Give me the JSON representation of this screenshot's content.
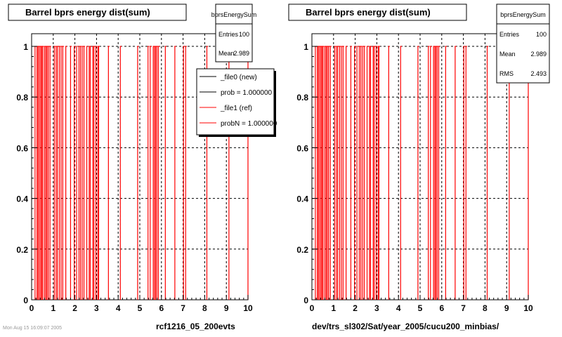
{
  "footer_timestamp": "Mon Aug 15 16:09:07 2005",
  "colors": {
    "new": "#000000",
    "ref": "#ff0000",
    "grid": "#000000",
    "frame": "#000000"
  },
  "chart_data": [
    {
      "type": "bar",
      "title": "Barrel bprs energy dist(sum)",
      "xlabel": "rcf1216_05_200evts",
      "ylabel": "",
      "xlim": [
        0,
        10
      ],
      "ylim": [
        0,
        1.05
      ],
      "xticks": [
        "0",
        "1",
        "2",
        "3",
        "4",
        "5",
        "6",
        "7",
        "8",
        "9",
        "10"
      ],
      "yticks": [
        "0",
        "0.2",
        "0.4",
        "0.6",
        "0.8",
        "1"
      ],
      "grid": true,
      "stats": {
        "name": "bprsEnergySum",
        "rows": [
          {
            "label": "Entries",
            "value": "100"
          },
          {
            "label": "Mean",
            "value": "2.989"
          }
        ]
      },
      "legend": {
        "position": "top-right",
        "entries": [
          {
            "label": "_file0 (new)",
            "color": "#000000"
          },
          {
            "label": "prob = 1.000000",
            "color": "#000000"
          },
          {
            "label": "_file1 (ref)",
            "color": "#ff0000"
          },
          {
            "label": "probN = 1.000000",
            "color": "#ff0000"
          }
        ]
      },
      "series": [
        {
          "x": [
            0.16,
            0.25,
            0.3,
            0.36,
            0.42,
            0.47,
            0.52,
            0.6,
            0.66,
            0.71,
            0.77,
            0.85,
            1.05,
            1.13,
            1.19,
            1.28,
            1.36,
            1.44,
            1.58,
            1.8,
            1.97,
            2.08,
            2.19,
            2.26,
            2.34,
            2.42,
            2.55,
            2.66,
            2.71,
            2.83,
            2.88,
            2.97,
            3.06,
            3.1,
            3.55,
            4.1,
            4.9,
            5.38,
            5.48,
            5.62,
            5.68,
            5.73,
            5.79,
            5.86,
            6.18,
            6.62,
            7.02,
            7.12,
            8.1,
            9.12,
            10.0
          ],
          "values": [
            1,
            1,
            1,
            1,
            1,
            1,
            1,
            1,
            1,
            1,
            1,
            1,
            1,
            1,
            1,
            1,
            1,
            1,
            1,
            1,
            1,
            1,
            1,
            1,
            1,
            1,
            1,
            1,
            1,
            1,
            1,
            1,
            1,
            1,
            1,
            1,
            1,
            1,
            1,
            1,
            1,
            1,
            1,
            1,
            1,
            1,
            1,
            1,
            1,
            1,
            1
          ]
        }
      ]
    },
    {
      "type": "bar",
      "title": "Barrel bprs energy dist(sum)",
      "xlabel": "dev/trs_sl302/Sat/year_2005/cucu200_minbias/",
      "ylabel": "",
      "xlim": [
        0,
        10
      ],
      "ylim": [
        0,
        1.05
      ],
      "xticks": [
        "0",
        "1",
        "2",
        "3",
        "4",
        "5",
        "6",
        "7",
        "8",
        "9",
        "10"
      ],
      "yticks": [
        "0",
        "0.2",
        "0.4",
        "0.6",
        "0.8",
        "1"
      ],
      "grid": true,
      "stats": {
        "name": "bprsEnergySum",
        "rows": [
          {
            "label": "Entries",
            "value": "100"
          },
          {
            "label": "Mean",
            "value": "2.989"
          },
          {
            "label": "RMS",
            "value": "2.493"
          }
        ]
      },
      "series": [
        {
          "x": [
            0.16,
            0.25,
            0.3,
            0.36,
            0.42,
            0.47,
            0.52,
            0.6,
            0.66,
            0.71,
            0.77,
            0.85,
            1.05,
            1.13,
            1.19,
            1.28,
            1.36,
            1.44,
            1.58,
            1.8,
            1.97,
            2.08,
            2.19,
            2.26,
            2.34,
            2.42,
            2.55,
            2.66,
            2.71,
            2.83,
            2.88,
            2.97,
            3.06,
            3.1,
            3.55,
            4.1,
            4.9,
            5.38,
            5.48,
            5.62,
            5.68,
            5.73,
            5.79,
            5.86,
            6.18,
            6.62,
            7.02,
            7.12,
            8.1,
            9.12,
            10.0
          ],
          "values": [
            1,
            1,
            1,
            1,
            1,
            1,
            1,
            1,
            1,
            1,
            1,
            1,
            1,
            1,
            1,
            1,
            1,
            1,
            1,
            1,
            1,
            1,
            1,
            1,
            1,
            1,
            1,
            1,
            1,
            1,
            1,
            1,
            1,
            1,
            1,
            1,
            1,
            1,
            1,
            1,
            1,
            1,
            1,
            1,
            1,
            1,
            1,
            1,
            1,
            1,
            1
          ]
        }
      ]
    }
  ]
}
